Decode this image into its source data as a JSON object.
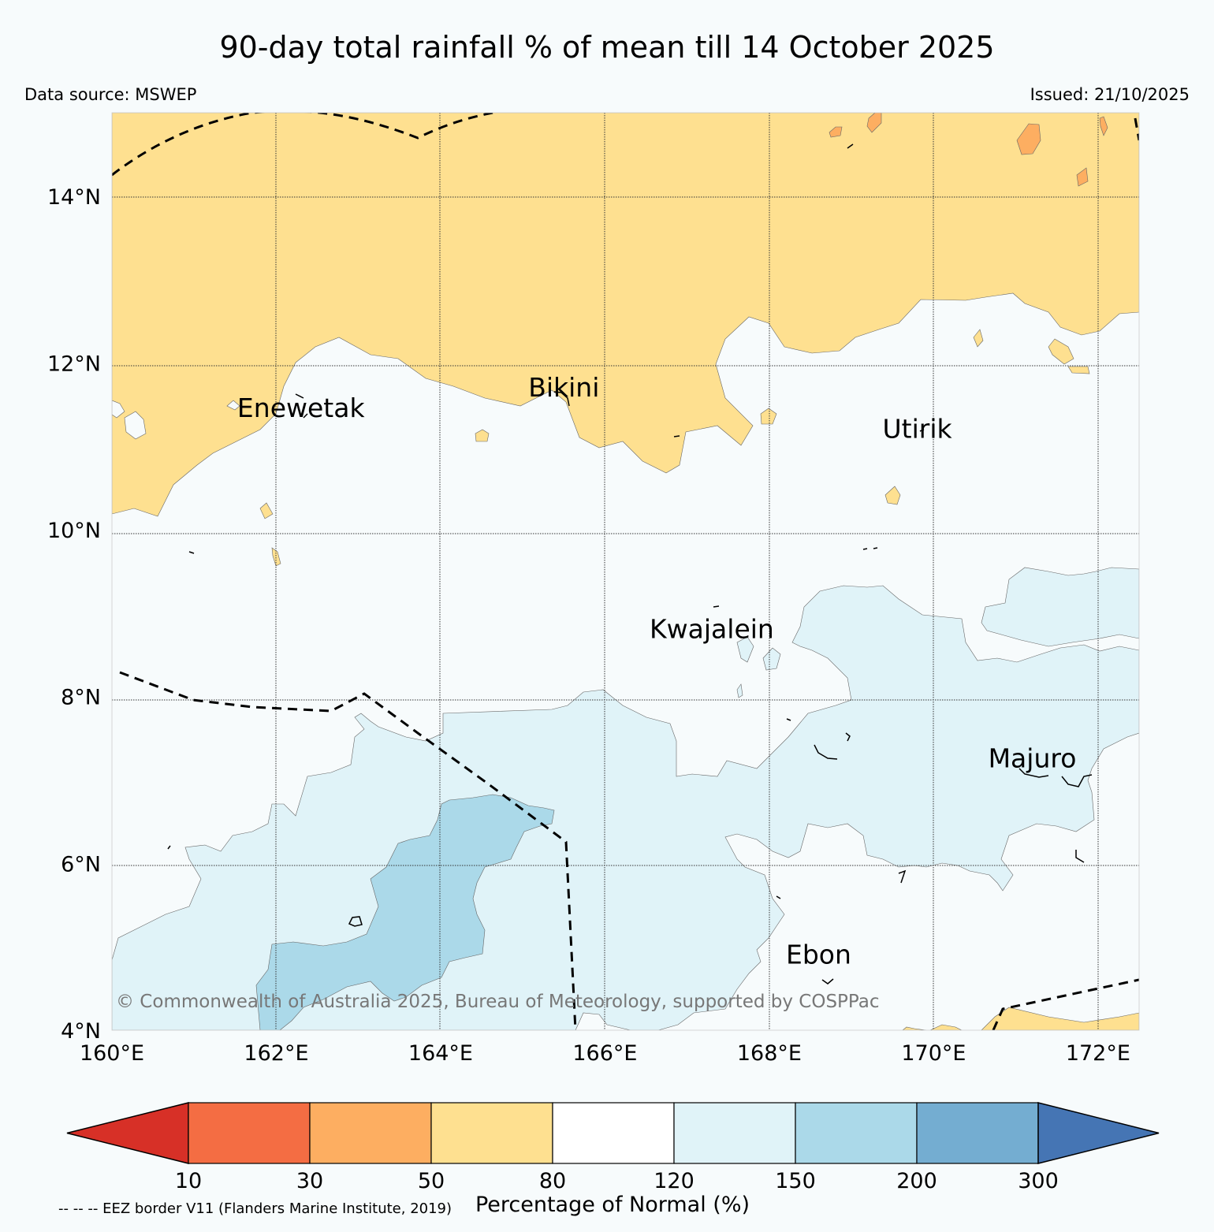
{
  "title": "90-day total rainfall % of mean till 14 October 2025",
  "data_source": "Data source: MSWEP",
  "issued": "Issued: 21/10/2025",
  "copyright": "© Commonwealth of Australia 2025, Bureau of Meteorology, supported by COSPPac",
  "eez_note": "-- -- -- EEZ border V11 (Flanders Marine Institute, 2019)",
  "map": {
    "lon_range": [
      160,
      172.5
    ],
    "lat_range": [
      4,
      15
    ],
    "lon_ticks": [
      {
        "value": 160,
        "label": "160°E"
      },
      {
        "value": 162,
        "label": "162°E"
      },
      {
        "value": 164,
        "label": "164°E"
      },
      {
        "value": 166,
        "label": "166°E"
      },
      {
        "value": 168,
        "label": "168°E"
      },
      {
        "value": 170,
        "label": "170°E"
      },
      {
        "value": 172,
        "label": "172°E"
      }
    ],
    "lat_ticks": [
      {
        "value": 4,
        "label": "4°N"
      },
      {
        "value": 6,
        "label": "6°N"
      },
      {
        "value": 8,
        "label": "8°N"
      },
      {
        "value": 10,
        "label": "10°N"
      },
      {
        "value": 12,
        "label": "12°N"
      },
      {
        "value": 14,
        "label": "14°N"
      }
    ],
    "places": [
      {
        "name": "Enewetak",
        "lon": 162.3,
        "lat": 11.35
      },
      {
        "name": "Bikini",
        "lon": 165.5,
        "lat": 11.6
      },
      {
        "name": "Utirik",
        "lon": 169.8,
        "lat": 11.1
      },
      {
        "name": "Kwajalein",
        "lon": 167.3,
        "lat": 8.7
      },
      {
        "name": "Majuro",
        "lon": 171.2,
        "lat": 7.15
      },
      {
        "name": "Ebon",
        "lon": 168.6,
        "lat": 4.8
      }
    ]
  },
  "colorbar": {
    "label": "Percentage of Normal (%)",
    "ticks": [
      "10",
      "30",
      "50",
      "80",
      "120",
      "150",
      "200",
      "300"
    ],
    "colors": [
      "#d73027",
      "#f46d43",
      "#fdae61",
      "#fee090",
      "#ffffff",
      "#e0f3f8",
      "#abd9e9",
      "#74add1",
      "#4575b4"
    ]
  }
}
